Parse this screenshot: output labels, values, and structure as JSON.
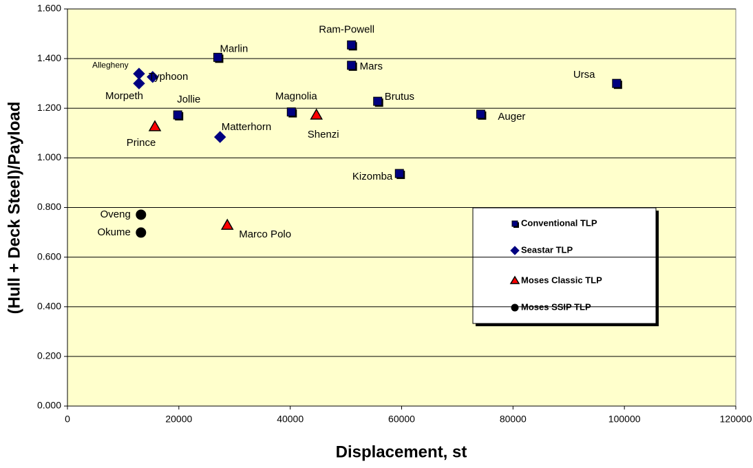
{
  "chart_data": {
    "type": "scatter",
    "xlabel": "Displacement, st",
    "ylabel": "(Hull + Deck Steel)/Payload",
    "xlim": [
      0,
      120000
    ],
    "ylim": [
      0,
      1.6
    ],
    "xticks": [
      0,
      20000,
      40000,
      60000,
      80000,
      100000,
      120000
    ],
    "yticks": [
      {
        "value": 0,
        "label": "0.000"
      },
      {
        "value": 0.2,
        "label": "0.200"
      },
      {
        "value": 0.4,
        "label": "0.400"
      },
      {
        "value": 0.6,
        "label": "0.600"
      },
      {
        "value": 0.8,
        "label": "0.800"
      },
      {
        "value": 1.0,
        "label": "1.000"
      },
      {
        "value": 1.2,
        "label": "1.200"
      },
      {
        "value": 1.4,
        "label": "1.400"
      },
      {
        "value": 1.6,
        "label": "1.600"
      }
    ],
    "grid": true,
    "legend": "right",
    "series": [
      {
        "name": "Conventional TLP",
        "color": "#000080",
        "marker": "square",
        "labels": [
          "Marlin",
          "Ram-Powell",
          "Mars",
          "Jollie",
          "Magnolia",
          "Brutus",
          "Auger",
          "Ursa",
          "Kizomba"
        ],
        "x": [
          27000,
          51000,
          51000,
          19800,
          40200,
          55700,
          74200,
          98600,
          59600
        ],
        "values": [
          1.405,
          1.455,
          1.373,
          1.173,
          1.185,
          1.228,
          1.176,
          1.3,
          0.937
        ]
      },
      {
        "name": "Seastar TLP",
        "color": "#000080",
        "marker": "diamond",
        "labels": [
          "Allegheny",
          "Typhoon",
          "Morpeth",
          "Matterhorn"
        ],
        "x": [
          12850,
          15300,
          12850,
          27400
        ],
        "values": [
          1.339,
          1.326,
          1.3,
          1.084
        ]
      },
      {
        "name": "Moses Classic TLP",
        "color": "#ff0000",
        "marker": "triangle",
        "labels": [
          "Prince",
          "Shenzi",
          "Marco Polo"
        ],
        "x": [
          15700,
          44700,
          28700
        ],
        "values": [
          1.126,
          1.173,
          0.729
        ]
      },
      {
        "name": "Moses SSIP TLP",
        "color": "#000000",
        "marker": "circle",
        "labels": [
          "Oveng",
          "Okume"
        ],
        "x": [
          13200,
          13200
        ],
        "values": [
          0.771,
          0.699
        ]
      }
    ]
  }
}
